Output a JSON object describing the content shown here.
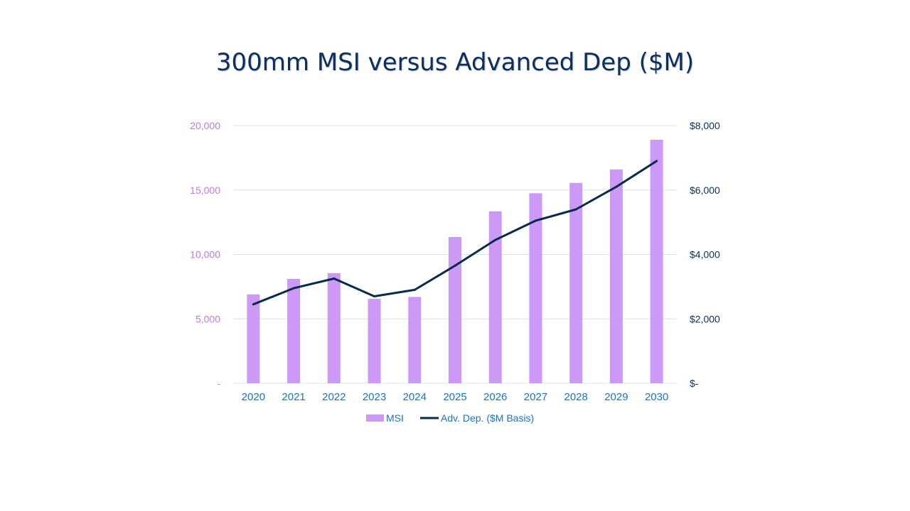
{
  "chart_data": {
    "type": "bar",
    "title": "300mm MSI versus Advanced Dep ($M)",
    "categories": [
      "2020",
      "2021",
      "2022",
      "2023",
      "2024",
      "2025",
      "2026",
      "2027",
      "2028",
      "2029",
      "2030"
    ],
    "series": [
      {
        "name": "MSI",
        "type": "bar",
        "axis": "left",
        "color": "#cc99f7",
        "values": [
          6900,
          8100,
          8550,
          6550,
          6700,
          11350,
          13350,
          14750,
          15550,
          16600,
          18900
        ]
      },
      {
        "name": "Adv. Dep. ($M Basis)",
        "type": "line",
        "axis": "right",
        "color": "#0b2a4a",
        "values": [
          2450,
          2950,
          3250,
          2700,
          2900,
          3650,
          4450,
          5050,
          5400,
          6100,
          6900
        ]
      }
    ],
    "y_left": {
      "range": [
        0,
        20000
      ],
      "ticks": [
        "-",
        "5,000",
        "10,000",
        "15,000",
        "20,000"
      ]
    },
    "y_right": {
      "range": [
        0,
        8000
      ],
      "ticks": [
        "$-",
        "$2,000",
        "$4,000",
        "$6,000",
        "$8,000"
      ]
    },
    "grid": true,
    "legend": "bottom"
  }
}
